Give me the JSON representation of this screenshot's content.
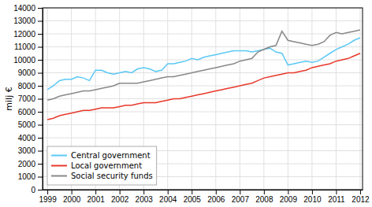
{
  "chart_data": {
    "type": "line",
    "ylabel": "milj €",
    "x": [
      1999,
      1999.25,
      1999.5,
      1999.75,
      2000,
      2000.25,
      2000.5,
      2000.75,
      2001,
      2001.25,
      2001.5,
      2001.75,
      2002,
      2002.25,
      2002.5,
      2002.75,
      2003,
      2003.25,
      2003.5,
      2003.75,
      2004,
      2004.25,
      2004.5,
      2004.75,
      2005,
      2005.25,
      2005.5,
      2005.75,
      2006,
      2006.25,
      2006.5,
      2006.75,
      2007,
      2007.25,
      2007.5,
      2007.75,
      2008,
      2008.25,
      2008.5,
      2008.75,
      2009,
      2009.25,
      2009.5,
      2009.75,
      2010,
      2010.25,
      2010.5,
      2010.75,
      2011,
      2011.25,
      2011.5,
      2011.75,
      2012
    ],
    "series": [
      {
        "name": "Central government",
        "color": "#5BC8F5",
        "values": [
          7700,
          8000,
          8400,
          8500,
          8500,
          8700,
          8600,
          8400,
          9200,
          9200,
          9000,
          8900,
          9000,
          9100,
          9000,
          9300,
          9400,
          9300,
          9100,
          9200,
          9700,
          9700,
          9800,
          9900,
          10100,
          10000,
          10200,
          10300,
          10400,
          10500,
          10600,
          10700,
          10700,
          10700,
          10600,
          10700,
          10800,
          10900,
          10600,
          10500,
          9600,
          9700,
          9800,
          9900,
          9800,
          9900,
          10200,
          10500,
          10800,
          11000,
          11200,
          11500,
          11700
        ]
      },
      {
        "name": "Local government",
        "color": "#E8382A",
        "values": [
          5400,
          5500,
          5700,
          5800,
          5900,
          6000,
          6100,
          6100,
          6200,
          6300,
          6300,
          6300,
          6400,
          6500,
          6500,
          6600,
          6700,
          6700,
          6700,
          6800,
          6900,
          7000,
          7000,
          7100,
          7200,
          7300,
          7400,
          7500,
          7600,
          7700,
          7800,
          7900,
          8000,
          8100,
          8200,
          8400,
          8600,
          8700,
          8800,
          8900,
          9000,
          9000,
          9100,
          9200,
          9400,
          9500,
          9600,
          9700,
          9900,
          10000,
          10100,
          10300,
          10500
        ]
      },
      {
        "name": "Social security funds",
        "color": "#888888",
        "values": [
          6900,
          7000,
          7200,
          7300,
          7400,
          7500,
          7600,
          7600,
          7700,
          7800,
          7900,
          8000,
          8200,
          8200,
          8200,
          8200,
          8300,
          8400,
          8500,
          8600,
          8700,
          8700,
          8800,
          8900,
          9000,
          9100,
          9200,
          9300,
          9400,
          9500,
          9600,
          9700,
          9900,
          10000,
          10100,
          10600,
          10800,
          11000,
          11100,
          12200,
          11500,
          11400,
          11300,
          11200,
          11100,
          11200,
          11400,
          11900,
          12100,
          12000,
          12100,
          12200,
          12300
        ]
      }
    ],
    "xlim": [
      1998.8,
      2012.1
    ],
    "xticks": [
      1999,
      2000,
      2001,
      2002,
      2003,
      2004,
      2005,
      2006,
      2007,
      2008,
      2009,
      2010,
      2011,
      2012
    ],
    "ylim": [
      0,
      14000
    ],
    "yticks": [
      0,
      1000,
      2000,
      3000,
      4000,
      5000,
      6000,
      7000,
      8000,
      9000,
      10000,
      11000,
      12000,
      13000,
      14000
    ],
    "grid": true,
    "legend": "lower left"
  }
}
